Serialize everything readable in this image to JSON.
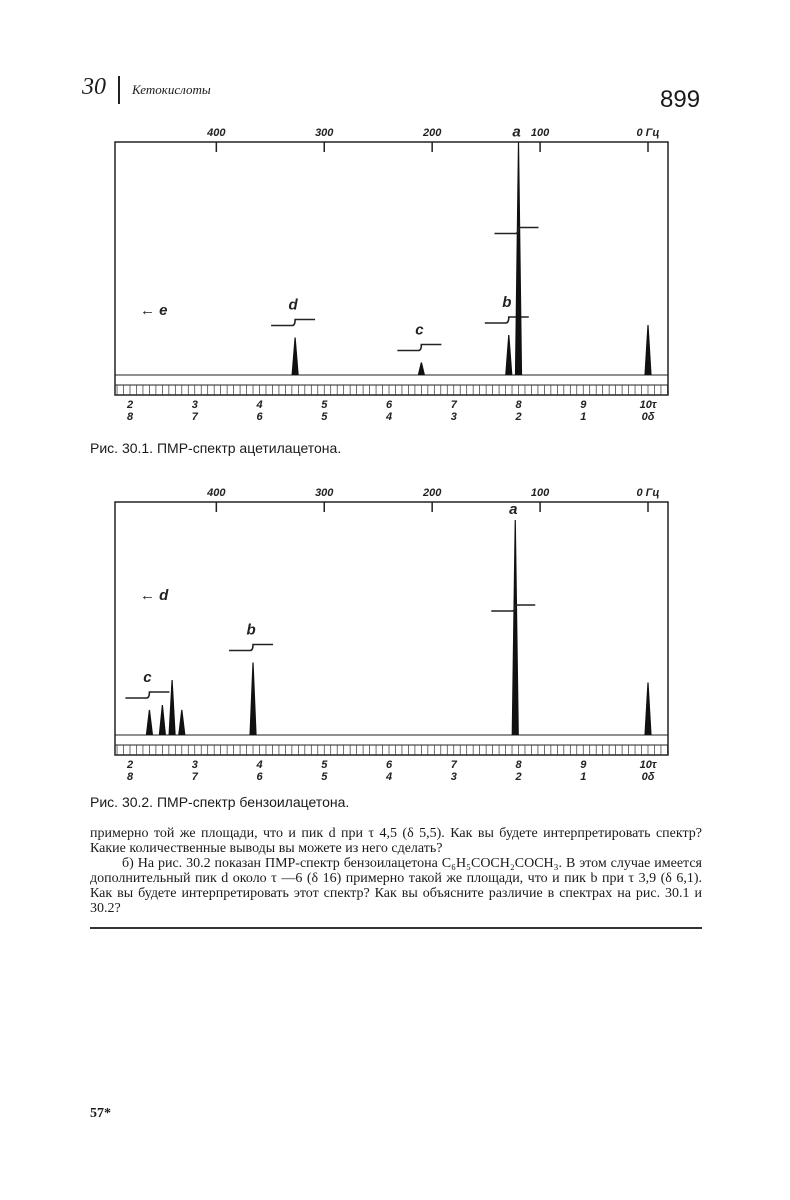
{
  "header": {
    "chapter_number": "30",
    "chapter_title": "Кетокислоты",
    "page_number": "899"
  },
  "chart_data": [
    {
      "type": "line",
      "title": "",
      "caption": "Рис. 30.1. ПМР-спектр  ацетилацетона.",
      "top_axis": {
        "unit": "Гц",
        "ticks": [
          "400",
          "300",
          "200",
          "100",
          "0 Гц"
        ],
        "values": [
          400,
          300,
          200,
          100,
          0
        ]
      },
      "tau_ticks": [
        "2",
        "3",
        "4",
        "5",
        "6",
        "7",
        "8",
        "9",
        "10τ"
      ],
      "delta_ticks": [
        "8",
        "7",
        "6",
        "5",
        "4",
        "3",
        "2",
        "1",
        "0δ"
      ],
      "xlim_tau": [
        2,
        10
      ],
      "peaks": [
        {
          "label": "d",
          "tau": 4.55,
          "height": 0.15
        },
        {
          "label": "c",
          "tau": 6.5,
          "height": 0.05
        },
        {
          "label": "b",
          "tau": 7.85,
          "height": 0.16
        },
        {
          "label": "a",
          "tau": 8.0,
          "height": 0.93
        },
        {
          "label": "",
          "tau": 10.0,
          "height": 0.2
        }
      ],
      "annotation": "← e"
    },
    {
      "type": "line",
      "title": "",
      "caption": "Рис. 30.2. ПМР-спектр бензоилацетона.",
      "top_axis": {
        "unit": "Гц",
        "ticks": [
          "400",
          "300",
          "200",
          "100",
          "0 Гц"
        ],
        "values": [
          400,
          300,
          200,
          100,
          0
        ]
      },
      "tau_ticks": [
        "2",
        "3",
        "4",
        "5",
        "6",
        "7",
        "8",
        "9",
        "10τ"
      ],
      "delta_ticks": [
        "8",
        "7",
        "6",
        "5",
        "4",
        "3",
        "2",
        "1",
        "0δ"
      ],
      "xlim_tau": [
        2,
        10
      ],
      "peaks": [
        {
          "label": "c",
          "tau": 2.3,
          "height": 0.1
        },
        {
          "label": "",
          "tau": 2.5,
          "height": 0.12
        },
        {
          "label": "",
          "tau": 2.65,
          "height": 0.22
        },
        {
          "label": "",
          "tau": 2.8,
          "height": 0.1
        },
        {
          "label": "b",
          "tau": 3.9,
          "height": 0.29
        },
        {
          "label": "a",
          "tau": 7.95,
          "height": 0.86
        },
        {
          "label": "",
          "tau": 10.0,
          "height": 0.21
        }
      ],
      "annotation": "← d"
    }
  ],
  "text": {
    "p1": "примерно той же площади, что и пик d при τ 4,5 (δ 5,5). Как вы будете интерпретировать спектр? Какие количественные выводы вы можете из него сделать?",
    "p2": "б) На рис. 30.2 показан ПМР-спектр бензоилацетона C₆H₅COCH₂COCH₃. В этом случае имеется дополнительный пик d около τ —6 (δ 16) примерно такой же площади, что и пик b при τ 3,9 (δ 6,1). Как вы будете интерпретировать этот спектр? Как вы объясните различие в спектрах на рис. 30.1 и 30.2?"
  },
  "footer": {
    "signature": "57*"
  }
}
